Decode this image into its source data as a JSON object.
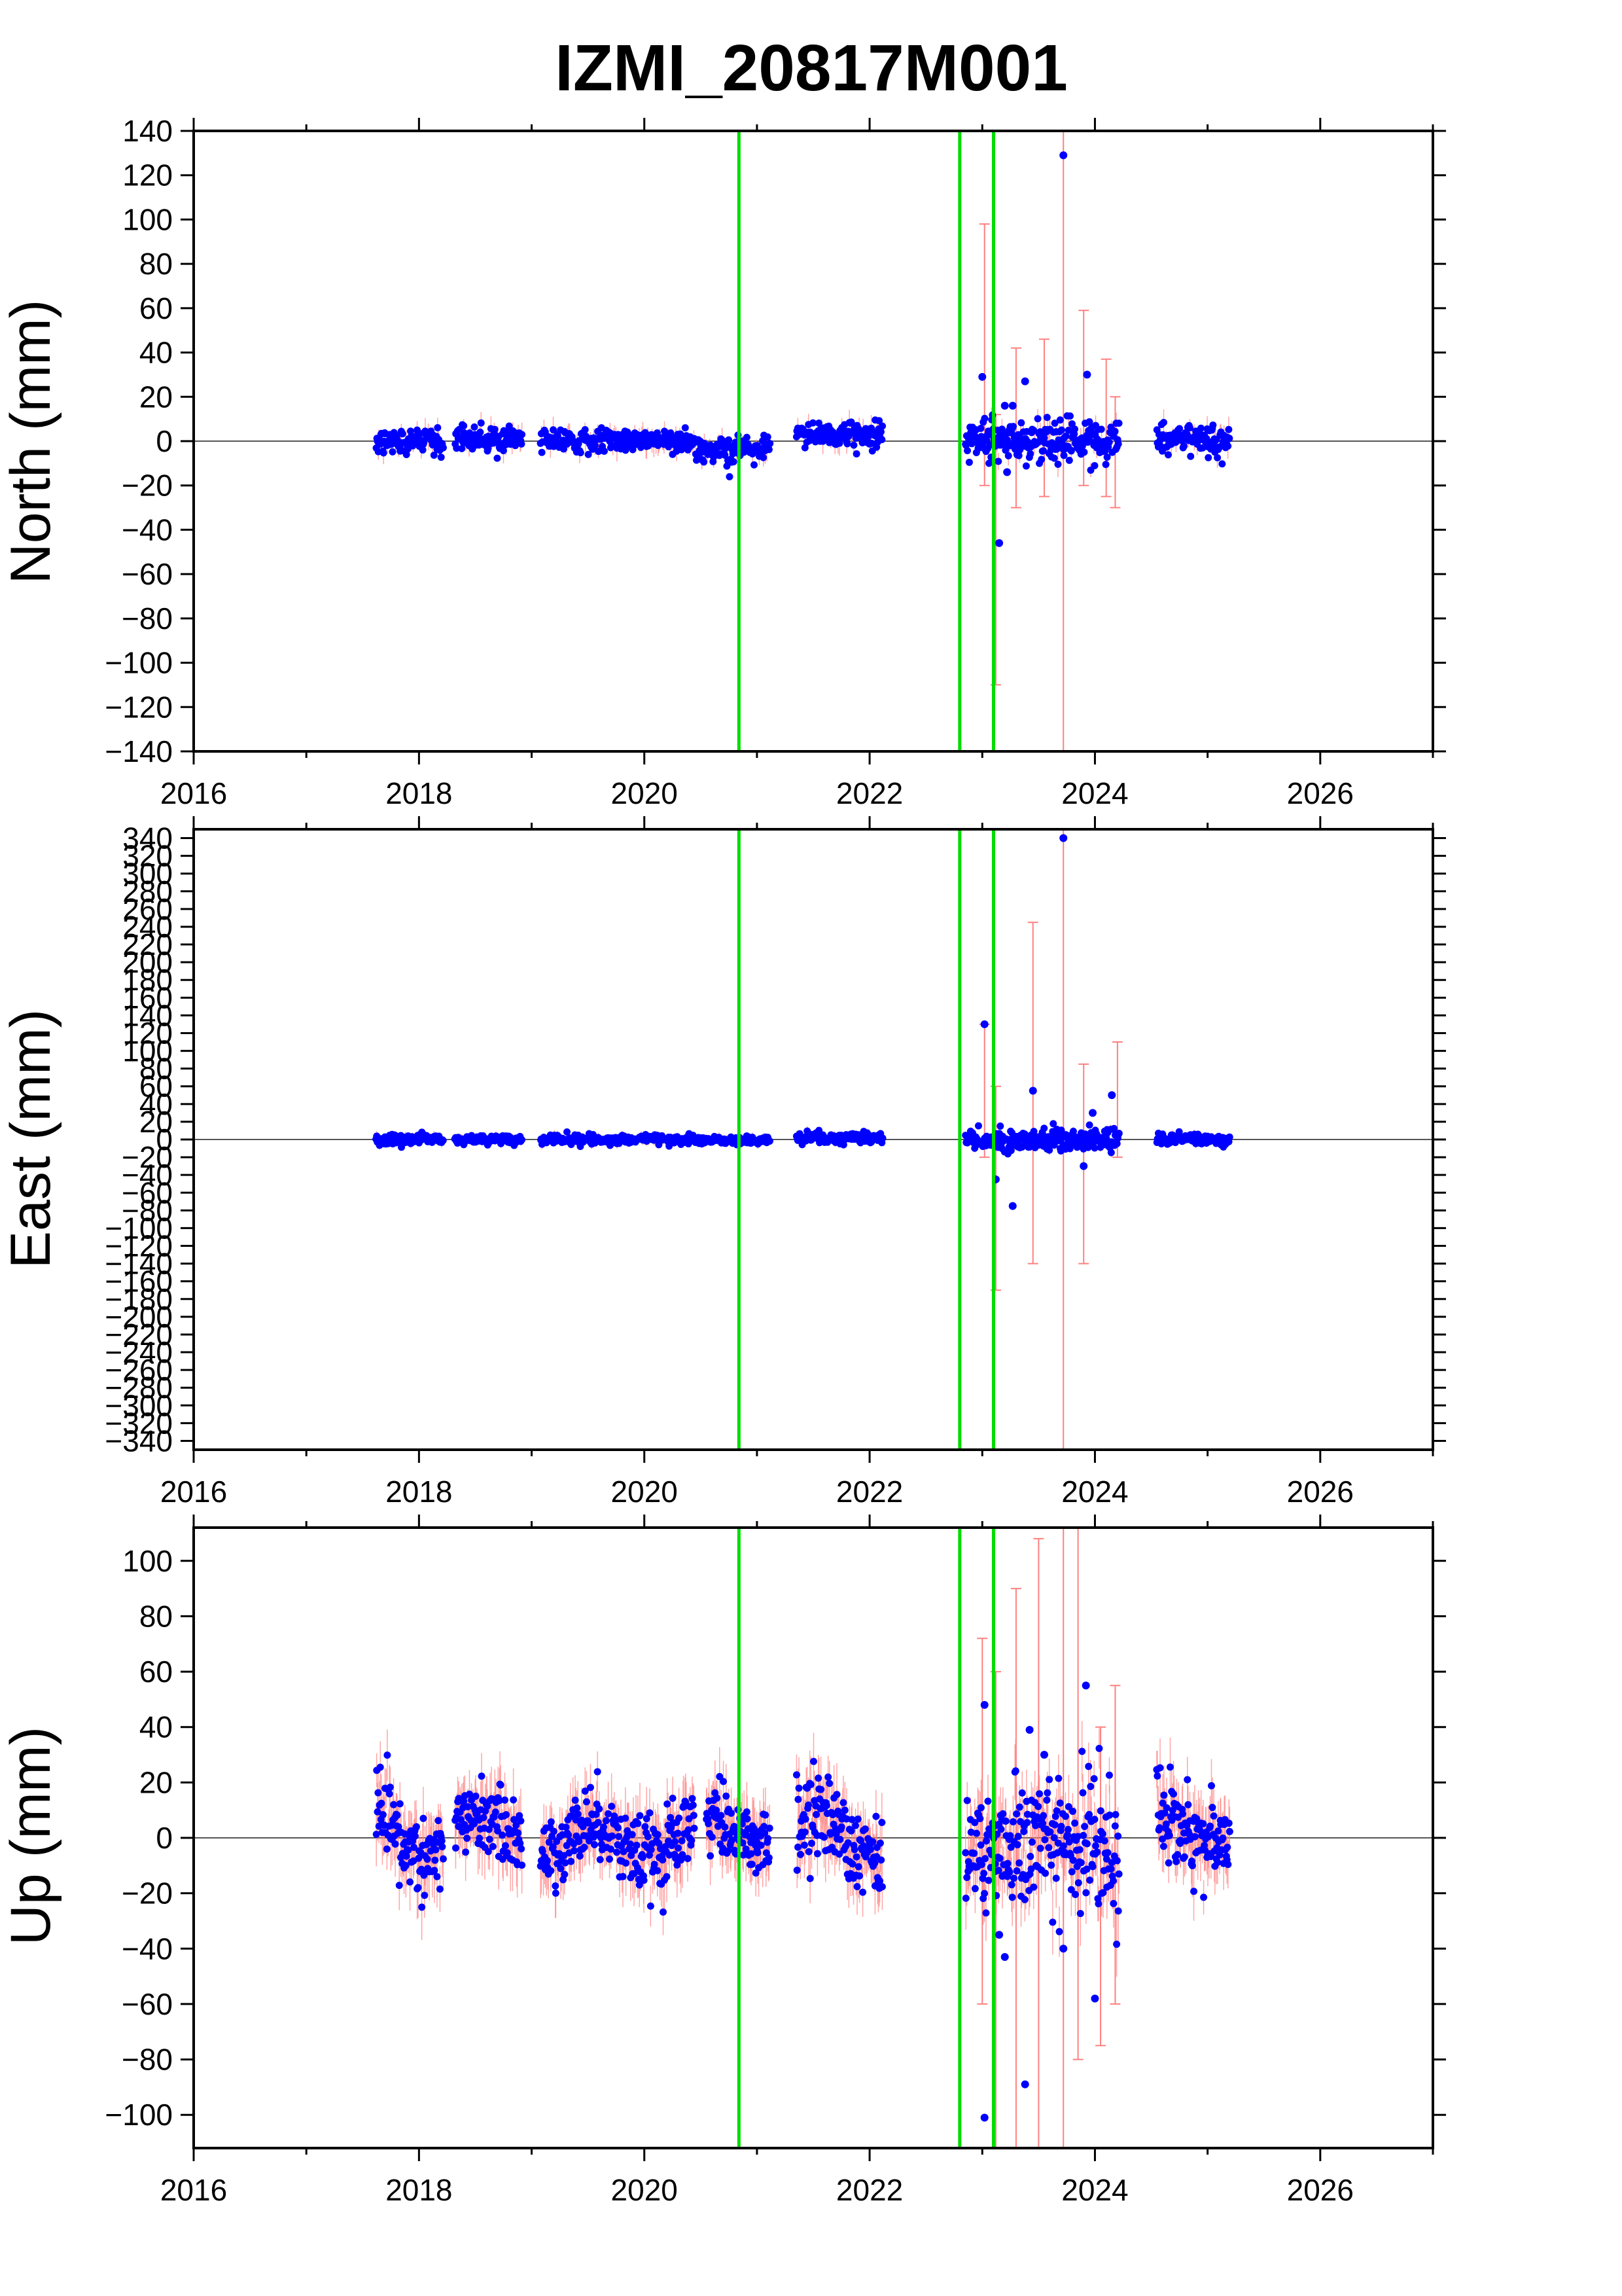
{
  "title": "IZMI_20817M001",
  "colors": {
    "points": "#0000ff",
    "error_bars": "#ff8080",
    "event_lines": "#00dd00",
    "zero_line": "#555555",
    "frame": "#000000"
  },
  "chart_data": [
    {
      "type": "scatter",
      "panel": "north",
      "ylabel": "North (mm)",
      "xlim": [
        2016,
        2027
      ],
      "ylim": [
        -140,
        140
      ],
      "x_ticks": [
        2016,
        2018,
        2020,
        2022,
        2024,
        2026
      ],
      "y_ticks": [
        -140,
        -120,
        -100,
        -80,
        -60,
        -40,
        -20,
        0,
        20,
        40,
        60,
        80,
        100,
        120,
        140
      ],
      "y_tick_step": 20,
      "grid": false,
      "event_lines_x": [
        2020.84,
        2022.8,
        2023.1
      ],
      "segments": [
        {
          "x_start": 2017.62,
          "x_end": 2018.22,
          "mean": 0,
          "spread": 3
        },
        {
          "x_start": 2018.32,
          "x_end": 2018.92,
          "mean": 1,
          "spread": 2.5
        },
        {
          "x_start": 2019.08,
          "x_end": 2020.45,
          "mean": 0,
          "spread": 2.5
        },
        {
          "x_start": 2020.45,
          "x_end": 2021.12,
          "mean": -4,
          "spread": 3
        },
        {
          "x_start": 2021.35,
          "x_end": 2022.12,
          "mean": 3,
          "spread": 3
        },
        {
          "x_start": 2022.85,
          "x_end": 2024.22,
          "mean": 0,
          "spread": 5
        },
        {
          "x_start": 2024.55,
          "x_end": 2025.2,
          "mean": 1,
          "spread": 3
        }
      ],
      "outliers": [
        {
          "x": 2023.0,
          "y": 29
        },
        {
          "x": 2023.15,
          "y": -46
        },
        {
          "x": 2023.2,
          "y": 16
        },
        {
          "x": 2023.27,
          "y": 16
        },
        {
          "x": 2023.38,
          "y": 27
        },
        {
          "x": 2023.72,
          "y": 129
        },
        {
          "x": 2023.93,
          "y": 30
        },
        {
          "x": 2023.22,
          "y": -14
        }
      ],
      "error_bars": [
        {
          "x": 2023.12,
          "lo": -110,
          "hi": 12
        },
        {
          "x": 2023.3,
          "lo": -30,
          "hi": 42
        },
        {
          "x": 2023.55,
          "lo": -25,
          "hi": 46
        },
        {
          "x": 2023.72,
          "lo": -140,
          "hi": 140
        },
        {
          "x": 2023.9,
          "lo": -20,
          "hi": 59
        },
        {
          "x": 2024.1,
          "lo": -25,
          "hi": 37
        },
        {
          "x": 2024.18,
          "lo": -30,
          "hi": 20
        },
        {
          "x": 2023.02,
          "lo": -20,
          "hi": 98
        }
      ]
    },
    {
      "type": "scatter",
      "panel": "east",
      "ylabel": "East (mm)",
      "xlim": [
        2016,
        2027
      ],
      "ylim": [
        -350,
        350
      ],
      "x_ticks": [
        2016,
        2018,
        2020,
        2022,
        2024,
        2026
      ],
      "y_ticks": [
        -340,
        -320,
        -300,
        -280,
        -260,
        -240,
        -220,
        -200,
        -180,
        -160,
        -140,
        -120,
        -100,
        -80,
        -60,
        -40,
        -20,
        0,
        20,
        40,
        60,
        80,
        100,
        120,
        140,
        160,
        180,
        200,
        220,
        240,
        260,
        280,
        300,
        320,
        340
      ],
      "y_tick_step": 20,
      "grid": false,
      "event_lines_x": [
        2020.84,
        2022.8,
        2023.1
      ],
      "segments": [
        {
          "x_start": 2017.62,
          "x_end": 2018.22,
          "mean": 0,
          "spread": 3
        },
        {
          "x_start": 2018.32,
          "x_end": 2018.92,
          "mean": 0,
          "spread": 2.5
        },
        {
          "x_start": 2019.08,
          "x_end": 2020.45,
          "mean": 0,
          "spread": 2.5
        },
        {
          "x_start": 2020.45,
          "x_end": 2021.12,
          "mean": -1,
          "spread": 2
        },
        {
          "x_start": 2021.35,
          "x_end": 2022.12,
          "mean": 2,
          "spread": 3
        },
        {
          "x_start": 2022.85,
          "x_end": 2024.22,
          "mean": 0,
          "spread": 6
        },
        {
          "x_start": 2024.55,
          "x_end": 2025.2,
          "mean": 0,
          "spread": 3
        }
      ],
      "outliers": [
        {
          "x": 2023.02,
          "y": 130
        },
        {
          "x": 2023.12,
          "y": -45
        },
        {
          "x": 2023.27,
          "y": -75
        },
        {
          "x": 2023.45,
          "y": 55
        },
        {
          "x": 2023.72,
          "y": 340
        },
        {
          "x": 2023.9,
          "y": -30
        },
        {
          "x": 2023.98,
          "y": 30
        },
        {
          "x": 2024.15,
          "y": 50
        }
      ],
      "error_bars": [
        {
          "x": 2023.12,
          "lo": -170,
          "hi": 60
        },
        {
          "x": 2023.45,
          "lo": -140,
          "hi": 245
        },
        {
          "x": 2023.72,
          "lo": -350,
          "hi": 350
        },
        {
          "x": 2023.9,
          "lo": -140,
          "hi": 85
        },
        {
          "x": 2024.2,
          "lo": -20,
          "hi": 110
        },
        {
          "x": 2023.02,
          "lo": -20,
          "hi": 130
        }
      ]
    },
    {
      "type": "scatter",
      "panel": "up",
      "ylabel": "Up (mm)",
      "xlim": [
        2016,
        2027
      ],
      "ylim": [
        -112,
        112
      ],
      "x_ticks": [
        2016,
        2018,
        2020,
        2022,
        2024,
        2026
      ],
      "y_ticks": [
        -100,
        -80,
        -60,
        -40,
        -20,
        0,
        20,
        40,
        60,
        80,
        100
      ],
      "y_tick_step": 20,
      "grid": false,
      "event_lines_x": [
        2020.84,
        2022.8,
        2023.1
      ],
      "segments": [
        {
          "x_start": 2017.62,
          "x_end": 2018.22,
          "mean": 0,
          "spread": 8,
          "seasonal": 7
        },
        {
          "x_start": 2018.32,
          "x_end": 2018.92,
          "mean": 2,
          "spread": 6,
          "seasonal": 6
        },
        {
          "x_start": 2019.08,
          "x_end": 2020.45,
          "mean": -1,
          "spread": 7,
          "seasonal": 7
        },
        {
          "x_start": 2020.55,
          "x_end": 2021.12,
          "mean": 3,
          "spread": 6,
          "seasonal": 5
        },
        {
          "x_start": 2021.35,
          "x_end": 2022.12,
          "mean": 2,
          "spread": 8,
          "seasonal": 7
        },
        {
          "x_start": 2022.85,
          "x_end": 2024.22,
          "mean": -3,
          "spread": 12,
          "seasonal": 3
        },
        {
          "x_start": 2024.55,
          "x_end": 2025.2,
          "mean": 3,
          "spread": 8,
          "seasonal": 6
        }
      ],
      "outliers": [
        {
          "x": 2023.02,
          "y": 48
        },
        {
          "x": 2023.02,
          "y": -101
        },
        {
          "x": 2023.15,
          "y": -35
        },
        {
          "x": 2023.2,
          "y": -43
        },
        {
          "x": 2023.38,
          "y": -89
        },
        {
          "x": 2023.42,
          "y": 39
        },
        {
          "x": 2023.72,
          "y": -40
        },
        {
          "x": 2023.92,
          "y": 55
        },
        {
          "x": 2024.0,
          "y": -58
        },
        {
          "x": 2023.55,
          "y": 30
        }
      ],
      "error_bars": [
        {
          "x": 2023.12,
          "lo": -112,
          "hi": 60
        },
        {
          "x": 2023.3,
          "lo": -112,
          "hi": 90
        },
        {
          "x": 2023.5,
          "lo": -112,
          "hi": 108
        },
        {
          "x": 2023.72,
          "lo": -112,
          "hi": 112
        },
        {
          "x": 2023.85,
          "lo": -80,
          "hi": 112
        },
        {
          "x": 2024.05,
          "lo": -75,
          "hi": 40
        },
        {
          "x": 2024.18,
          "lo": -60,
          "hi": 55
        },
        {
          "x": 2023.0,
          "lo": -60,
          "hi": 72
        }
      ]
    }
  ]
}
